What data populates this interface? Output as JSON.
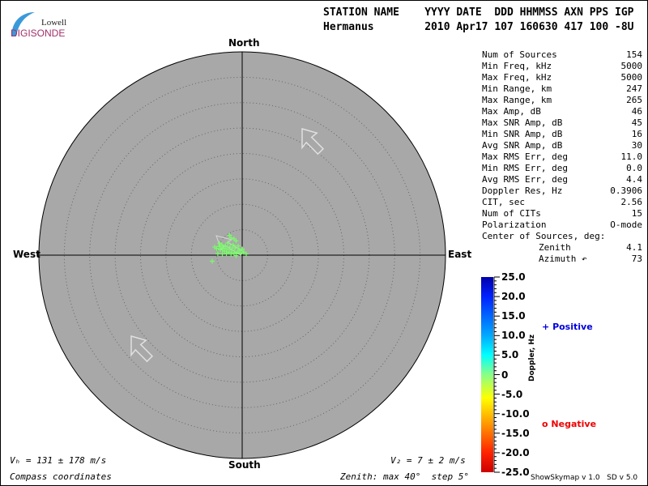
{
  "logo": {
    "line1": "Lowell",
    "line2": "DIGISONDE"
  },
  "header": {
    "row1": "STATION NAME    YYYY DATE  DDD HHMMSS AXN PPS IGP",
    "row2": "Hermanus        2010 Apr17 107 160630 417 100 -8U"
  },
  "stats": [
    {
      "label": "Num of Sources",
      "value": "154"
    },
    {
      "label": "Min Freq, kHz",
      "value": "5000"
    },
    {
      "label": "Max Freq, kHz",
      "value": "5000"
    },
    {
      "label": "Min Range, km",
      "value": "247"
    },
    {
      "label": "Max Range, km",
      "value": "265"
    },
    {
      "label": "Max Amp, dB",
      "value": "46"
    },
    {
      "label": "Max SNR Amp, dB",
      "value": "45"
    },
    {
      "label": "Min SNR Amp, dB",
      "value": "16"
    },
    {
      "label": "Avg SNR Amp, dB",
      "value": "30"
    },
    {
      "label": "Max RMS Err, deg",
      "value": "11.0"
    },
    {
      "label": "Min RMS Err, deg",
      "value": "0.0"
    },
    {
      "label": "Avg RMS Err, deg",
      "value": "4.4"
    },
    {
      "label": "Doppler Res, Hz",
      "value": "0.3906"
    },
    {
      "label": "CIT, sec",
      "value": "2.56"
    },
    {
      "label": "Num of CITs",
      "value": "15"
    },
    {
      "label": "Polarization",
      "value": "O-mode"
    }
  ],
  "center": {
    "title": "Center of Sources, deg:",
    "zenith_label": "Zenith",
    "zenith": "4.1",
    "azimuth_label": "Azimuth ↶",
    "azimuth": "73"
  },
  "directions": {
    "north": "North",
    "south": "South",
    "east": "East",
    "west": "West"
  },
  "footer": {
    "vh": "Vₕ = 131 ± 178 m/s",
    "vz": "V₂ = 7 ± 2 m/s",
    "coords": "Compass coordinates",
    "zenith": "Zenith: max 40°  step 5°",
    "version": "ShowSkymap v 1.0   SD v 5.0"
  },
  "colorbar": {
    "title": "Doppler, Hz",
    "ticks": [
      "25.0",
      "20.0",
      "15.0",
      "10.0",
      "5.0",
      "0",
      "-5.0",
      "-10.0",
      "-15.0",
      "-20.0",
      "-25.0"
    ]
  },
  "legend": {
    "positive": "Positive",
    "positive_symbol": "+",
    "positive_color": "#0000dd",
    "negative": "Negative",
    "negative_symbol": "o",
    "negative_color": "#ee0000"
  },
  "chart_data": {
    "type": "scatter",
    "coordinate_system": "polar sky map, compass coordinates",
    "zenith_max_deg": 40,
    "zenith_step_deg": 5,
    "point_color": "#77ff66",
    "points_east_north_deg": [
      [
        -5.4,
        1.6
      ],
      [
        -5.0,
        1.3
      ],
      [
        -4.6,
        1.7
      ],
      [
        -4.3,
        1.1
      ],
      [
        -4.0,
        2.0
      ],
      [
        -3.8,
        1.4
      ],
      [
        -3.5,
        0.8
      ],
      [
        -3.3,
        1.8
      ],
      [
        -3.0,
        1.2
      ],
      [
        -2.8,
        2.4
      ],
      [
        -2.6,
        0.6
      ],
      [
        -2.4,
        1.6
      ],
      [
        -2.2,
        3.4
      ],
      [
        -2.0,
        1.0
      ],
      [
        -1.8,
        2.0
      ],
      [
        -1.6,
        0.4
      ],
      [
        -1.4,
        1.4
      ],
      [
        -1.2,
        2.8
      ],
      [
        -1.0,
        0.6
      ],
      [
        -0.8,
        1.8
      ],
      [
        -0.6,
        1.0
      ],
      [
        -0.3,
        0.4
      ],
      [
        0.0,
        1.2
      ],
      [
        0.3,
        0.6
      ],
      [
        0.8,
        0.2
      ],
      [
        -5.9,
        -1.2
      ],
      [
        -4.8,
        0.3
      ],
      [
        -3.9,
        0.2
      ],
      [
        -2.2,
        0.2
      ],
      [
        -1.2,
        -0.1
      ],
      [
        -2.5,
        3.9
      ],
      [
        -1.6,
        3.2
      ],
      [
        -4.4,
        2.3
      ],
      [
        -3.1,
        0.3
      ]
    ],
    "arrows": [
      {
        "direction": "northwest",
        "location": "north-east quadrant"
      },
      {
        "direction": "northwest",
        "location": "south-west quadrant"
      }
    ]
  }
}
